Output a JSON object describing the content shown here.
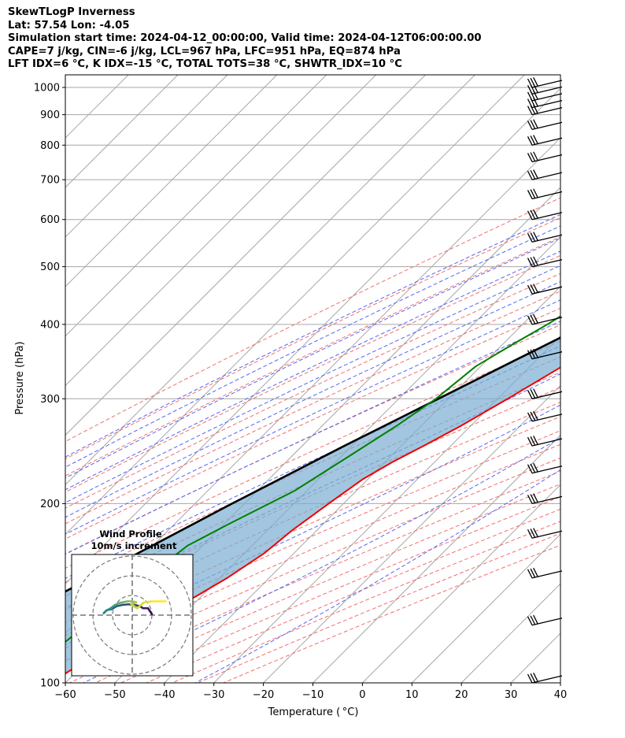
{
  "header": {
    "line1": "SkewTLogP Inverness",
    "line2": "Lat: 57.54   Lon: -4.05",
    "line3": "Simulation start time: 2024-04-12_00:00:00, Valid time: 2024-04-12T06:00:00.00",
    "line4": "CAPE=7 j/kg, CIN=-6 j/kg, LCL=967 hPa, LFC=951 hPa, EQ=874 hPa",
    "line5": "LFT IDX=6 °C, K IDX=-15 °C, TOTAL TOTS=38 °C, SHWTR_IDX=10 °C"
  },
  "chart_data": {
    "type": "line",
    "subtype": "skew-t log-p",
    "xlabel": "Temperature ( °C)",
    "ylabel": "Pressure (hPa)",
    "xlim": [
      -60,
      40
    ],
    "ylim": [
      1050,
      100
    ],
    "y_scale": "log",
    "grid": true,
    "x_ticks": [
      -60,
      -50,
      -40,
      -30,
      -20,
      -10,
      0,
      10,
      20,
      30,
      40
    ],
    "x_tick_labels": [
      "−60",
      "−50",
      "−40",
      "−30",
      "−20",
      "−10",
      "0",
      "10",
      "20",
      "30",
      "40"
    ],
    "y_ticks": [
      100,
      200,
      300,
      400,
      500,
      600,
      700,
      800,
      900,
      1000
    ],
    "y_tick_labels": [
      "100",
      "200",
      "300",
      "400",
      "500",
      "600",
      "700",
      "800",
      "900",
      "1000"
    ],
    "colors": {
      "temperature": "#ee0000",
      "dewpoint": "#008000",
      "parcel": "#000000",
      "cape_fill": "#7aaed2",
      "dry_adiabat": "#f07070",
      "moist_adiabat": "#5566ee",
      "mixing_ratio": "#9370db",
      "isotherm": "#a6a6a6",
      "isobar": "#a6a6a6"
    },
    "series": [
      {
        "key": "temperature",
        "points": [
          [
            1000,
            11.5
          ],
          [
            980,
            10.0
          ],
          [
            960,
            9.8
          ],
          [
            930,
            10.5
          ],
          [
            900,
            10.5
          ],
          [
            870,
            10.0
          ],
          [
            830,
            11.0
          ],
          [
            800,
            11.0
          ],
          [
            760,
            10.0
          ],
          [
            700,
            6.5
          ],
          [
            650,
            3.0
          ],
          [
            600,
            -0.5
          ],
          [
            550,
            -3.5
          ],
          [
            500,
            -7.5
          ],
          [
            450,
            -12.0
          ],
          [
            400,
            -17.0
          ],
          [
            350,
            -22.5
          ],
          [
            300,
            -28.0
          ],
          [
            270,
            -32.0
          ],
          [
            250,
            -35.5
          ],
          [
            235,
            -38.5
          ],
          [
            220,
            -41.0
          ],
          [
            200,
            -43.0
          ],
          [
            180,
            -45.0
          ],
          [
            165,
            -46.0
          ],
          [
            150,
            -48.5
          ],
          [
            140,
            -51.0
          ],
          [
            130,
            -54.0
          ],
          [
            120,
            -57.0
          ],
          [
            110,
            -60.0
          ],
          [
            100,
            -63.0
          ]
        ]
      },
      {
        "key": "dewpoint",
        "points": [
          [
            1000,
            9.5
          ],
          [
            975,
            9.5
          ],
          [
            950,
            9.0
          ],
          [
            930,
            8.5
          ],
          [
            900,
            4.5
          ],
          [
            875,
            0.0
          ],
          [
            850,
            -6.0
          ],
          [
            800,
            -20.5
          ],
          [
            780,
            -42.0
          ],
          [
            720,
            -38.0
          ],
          [
            680,
            -22.0
          ],
          [
            630,
            -19.0
          ],
          [
            600,
            -21.0
          ],
          [
            560,
            -24.0
          ],
          [
            540,
            -26.5
          ],
          [
            500,
            -29.0
          ],
          [
            470,
            -31.0
          ],
          [
            440,
            -32.0
          ],
          [
            400,
            -35.0
          ],
          [
            370,
            -38.0
          ],
          [
            340,
            -41.0
          ],
          [
            300,
            -42.5
          ],
          [
            270,
            -45.0
          ],
          [
            240,
            -48.5
          ],
          [
            210,
            -52.5
          ],
          [
            200,
            -55.0
          ],
          [
            185,
            -59.0
          ],
          [
            170,
            -63.0
          ],
          [
            150,
            -65.0
          ],
          [
            130,
            -67.0
          ],
          [
            115,
            -68.5
          ],
          [
            100,
            -70.0
          ]
        ]
      },
      {
        "key": "parcel",
        "points": [
          [
            1005,
            12.0
          ],
          [
            990,
            10.5
          ],
          [
            967,
            8.5
          ],
          [
            951,
            8.0
          ],
          [
            900,
            6.6
          ],
          [
            850,
            5.0
          ],
          [
            800,
            3.2
          ],
          [
            750,
            1.0
          ],
          [
            700,
            -1.4
          ],
          [
            650,
            -4.2
          ],
          [
            600,
            -7.4
          ],
          [
            550,
            -11.2
          ],
          [
            500,
            -15.8
          ],
          [
            450,
            -21.0
          ],
          [
            400,
            -27.0
          ],
          [
            350,
            -34.0
          ],
          [
            300,
            -42.0
          ],
          [
            250,
            -51.5
          ],
          [
            200,
            -62.5
          ],
          [
            150,
            -76.0
          ],
          [
            100,
            -95.0
          ]
        ]
      }
    ],
    "wind_barbs_pressure": [
      1000,
      975,
      950,
      925,
      900,
      850,
      800,
      750,
      700,
      650,
      600,
      550,
      500,
      450,
      400,
      350,
      300,
      275,
      250,
      225,
      200,
      175,
      150,
      125,
      100
    ],
    "inset": {
      "title_line1": "Wind Profile",
      "title_line2": "10m/s increment",
      "rings_ms": [
        10,
        20,
        30
      ],
      "hodograph": [
        [
          10.0,
          0.5
        ],
        [
          8.0,
          3.5
        ],
        [
          5.5,
          3.5
        ],
        [
          4.0,
          4.5
        ],
        [
          2.0,
          5.0
        ],
        [
          -2.0,
          5.5
        ],
        [
          -5.0,
          5.2
        ],
        [
          -8.0,
          4.5
        ],
        [
          -10.5,
          3.0
        ],
        [
          -13.0,
          2.5
        ],
        [
          -14.5,
          1.0
        ],
        [
          -13.5,
          2.0
        ],
        [
          -11.0,
          3.5
        ],
        [
          -9.0,
          5.0
        ],
        [
          -7.0,
          6.0
        ],
        [
          -5.0,
          6.5
        ],
        [
          -2.5,
          7.0
        ],
        [
          0.0,
          7.0
        ],
        [
          2.0,
          6.5
        ],
        [
          -0.5,
          5.5
        ],
        [
          2.5,
          3.5
        ],
        [
          6.0,
          6.5
        ],
        [
          10.0,
          7.0
        ],
        [
          17.0,
          7.0
        ]
      ],
      "colormap_start": "#3b0f53",
      "colormap_mid": "#21908d",
      "colormap_end": "#fde725"
    }
  }
}
